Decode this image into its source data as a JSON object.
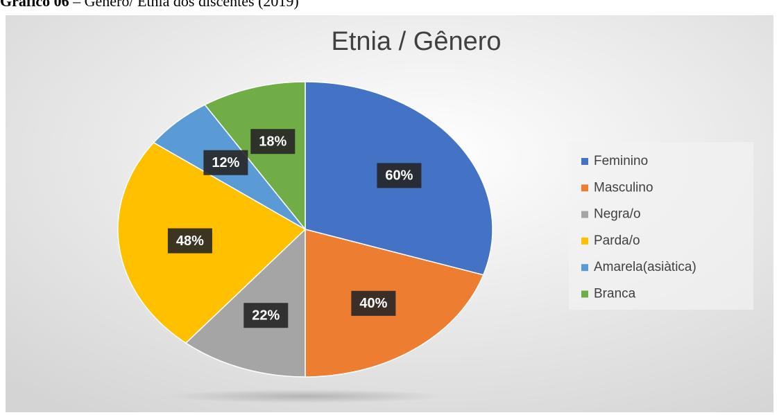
{
  "caption": {
    "label": "Gráfico 06",
    "text": "– Gênero/ Etnia dos discentes (2019)"
  },
  "chart_data": {
    "type": "pie",
    "title": "Etnia / Gênero",
    "categories": [
      "Feminino",
      "Masculino",
      "Negra/o",
      "Parda/o",
      "Amarela(asiàtica)",
      "Branca"
    ],
    "values": [
      60,
      40,
      22,
      48,
      12,
      18
    ],
    "value_labels": [
      "60%",
      "40%",
      "22%",
      "48%",
      "12%",
      "18%"
    ],
    "colors": [
      "#4472c4",
      "#ed7d31",
      "#a5a5a5",
      "#ffc000",
      "#5b9bd5",
      "#70ad47"
    ],
    "legend": "right"
  }
}
